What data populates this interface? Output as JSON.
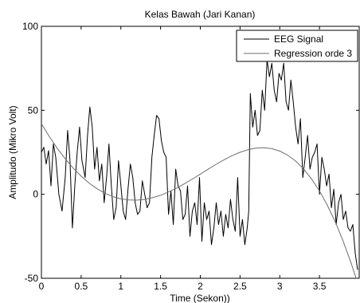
{
  "chart_data": {
    "type": "line",
    "title": "Kelas Bawah (Jari Kanan)",
    "xlabel": "Time (Sekon))",
    "ylabel": "Amplitudo (Mikro Volt)",
    "xlim": [
      0,
      4
    ],
    "ylim": [
      -50,
      100
    ],
    "xticks": [
      0,
      0.5,
      1,
      1.5,
      2,
      2.5,
      3,
      3.5
    ],
    "xtick_labels": [
      "0",
      "0.5",
      "1",
      "1.5",
      "2",
      "2.5",
      "3",
      "3.5"
    ],
    "yticks": [
      -50,
      0,
      50,
      100
    ],
    "ytick_labels": [
      "-50",
      "0",
      "50",
      "100"
    ],
    "grid": false,
    "legend_position": "top-right",
    "series": [
      {
        "name": "EEG Signal",
        "color": "#000000",
        "x": [
          0,
          0.03,
          0.06,
          0.09,
          0.12,
          0.15,
          0.18,
          0.22,
          0.26,
          0.3,
          0.33,
          0.36,
          0.39,
          0.42,
          0.45,
          0.48,
          0.51,
          0.55,
          0.58,
          0.61,
          0.64,
          0.67,
          0.7,
          0.73,
          0.76,
          0.79,
          0.82,
          0.85,
          0.88,
          0.91,
          0.94,
          0.97,
          1.0,
          1.03,
          1.06,
          1.09,
          1.12,
          1.15,
          1.18,
          1.21,
          1.24,
          1.27,
          1.3,
          1.33,
          1.36,
          1.39,
          1.42,
          1.45,
          1.48,
          1.51,
          1.54,
          1.57,
          1.6,
          1.63,
          1.66,
          1.69,
          1.72,
          1.75,
          1.78,
          1.81,
          1.84,
          1.87,
          1.9,
          1.93,
          1.96,
          1.99,
          2.02,
          2.05,
          2.08,
          2.11,
          2.14,
          2.17,
          2.2,
          2.23,
          2.26,
          2.29,
          2.32,
          2.35,
          2.38,
          2.41,
          2.44,
          2.47,
          2.5,
          2.53,
          2.56,
          2.59,
          2.61,
          2.63,
          2.66,
          2.69,
          2.72,
          2.75,
          2.78,
          2.81,
          2.84,
          2.87,
          2.9,
          2.93,
          2.96,
          2.99,
          3.02,
          3.05,
          3.08,
          3.11,
          3.14,
          3.17,
          3.2,
          3.23,
          3.26,
          3.29,
          3.32,
          3.35,
          3.38,
          3.41,
          3.44,
          3.47,
          3.5,
          3.53,
          3.56,
          3.59,
          3.62,
          3.65,
          3.68,
          3.71,
          3.74,
          3.77,
          3.8,
          3.83,
          3.86,
          3.89,
          3.92,
          3.95,
          3.98
        ],
        "values": [
          25,
          28,
          18,
          26,
          5,
          30,
          22,
          0,
          -10,
          10,
          38,
          20,
          -20,
          5,
          25,
          40,
          20,
          10,
          35,
          52,
          40,
          15,
          28,
          8,
          18,
          -5,
          10,
          30,
          5,
          -15,
          -8,
          20,
          5,
          -10,
          -15,
          3,
          18,
          10,
          -5,
          -12,
          -10,
          8,
          0,
          -8,
          -5,
          22,
          35,
          47,
          45,
          32,
          25,
          22,
          -12,
          2,
          -18,
          15,
          5,
          2,
          -15,
          -12,
          5,
          -25,
          -10,
          -5,
          -18,
          10,
          -28,
          -5,
          -15,
          -10,
          -30,
          -20,
          -5,
          -18,
          -10,
          -25,
          -12,
          -20,
          -3,
          -15,
          -22,
          10,
          -25,
          -15,
          -30,
          -20,
          -10,
          60,
          40,
          50,
          35,
          38,
          62,
          50,
          80,
          70,
          78,
          62,
          55,
          72,
          68,
          78,
          55,
          50,
          68,
          55,
          40,
          30,
          45,
          10,
          22,
          35,
          15,
          22,
          25,
          30,
          0,
          22,
          15,
          5,
          12,
          -8,
          3,
          -18,
          -5,
          0,
          -15,
          -10,
          -20,
          -22,
          -18,
          -35,
          -45
        ]
      },
      {
        "name": "Regression orde 3",
        "color": "#6e6e6e",
        "x": [
          0,
          0.1,
          0.2,
          0.3,
          0.4,
          0.5,
          0.6,
          0.7,
          0.8,
          0.9,
          1.0,
          1.1,
          1.2,
          1.3,
          1.4,
          1.5,
          1.6,
          1.7,
          1.8,
          1.9,
          2.0,
          2.1,
          2.2,
          2.3,
          2.4,
          2.5,
          2.6,
          2.7,
          2.8,
          2.9,
          3.0,
          3.1,
          3.2,
          3.3,
          3.4,
          3.5,
          3.6,
          3.7,
          3.8,
          3.9,
          4.0
        ],
        "values": [
          42,
          34.3,
          27.3,
          21.1,
          15.6,
          10.8,
          6.7,
          3.3,
          0.6,
          -1.4,
          -2.7,
          -3.4,
          -3.5,
          -3.0,
          -2.0,
          -0.6,
          1.4,
          3.7,
          6.3,
          9.1,
          12.0,
          15.0,
          17.9,
          20.6,
          23.0,
          25.0,
          26.5,
          27.5,
          27.7,
          27.2,
          25.7,
          23.3,
          19.8,
          15.1,
          9.2,
          2.0,
          -6.6,
          -16.6,
          -28.1,
          -41.1,
          -55.7
        ]
      }
    ]
  }
}
